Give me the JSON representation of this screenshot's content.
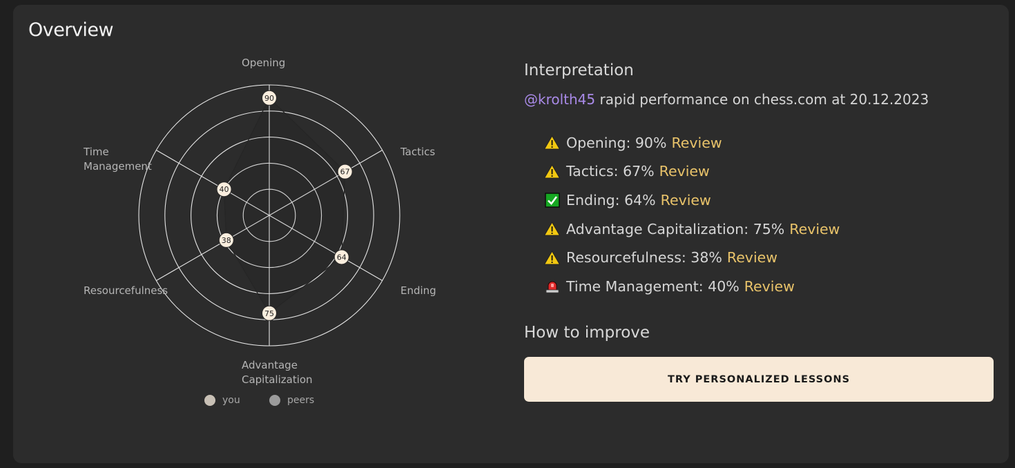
{
  "card": {
    "title": "Overview"
  },
  "chart_data": {
    "type": "radar",
    "axes": [
      "Opening",
      "Tactics",
      "Ending",
      "Advantage Capitalization",
      "Resourcefulness",
      "Time Management"
    ],
    "axis_labels": [
      [
        "Opening"
      ],
      [
        "Tactics"
      ],
      [
        "Ending"
      ],
      [
        "Advantage",
        "Capitalization"
      ],
      [
        "Resourcefulness"
      ],
      [
        "Time",
        "Management"
      ]
    ],
    "range": [
      0,
      100
    ],
    "grid_rings": 5,
    "series": [
      {
        "name": "you",
        "values": [
          90,
          67,
          64,
          75,
          38,
          40
        ],
        "color": "#c8c0b5"
      },
      {
        "name": "peers",
        "values": [],
        "color": "#9b9b9b"
      }
    ],
    "legend_position": "bottom"
  },
  "interpretation": {
    "heading": "Interpretation",
    "username": "@krolth45",
    "subtitle_rest": " rapid performance on chess.com at 20.12.2023",
    "items": [
      {
        "icon": "warning-icon",
        "text": "Opening: 90%",
        "link": "Review"
      },
      {
        "icon": "warning-icon",
        "text": "Tactics: 67%",
        "link": "Review"
      },
      {
        "icon": "check-icon",
        "text": "Ending: 64%",
        "link": "Review"
      },
      {
        "icon": "warning-icon",
        "text": "Advantage Capitalization: 75%",
        "link": "Review"
      },
      {
        "icon": "warning-icon",
        "text": "Resourcefulness: 38%",
        "link": "Review"
      },
      {
        "icon": "siren-icon",
        "text": "Time Management: 40%",
        "link": "Review"
      }
    ]
  },
  "improve": {
    "heading": "How to improve",
    "button_label": "TRY PERSONALIZED LESSONS"
  },
  "colors": {
    "accent_user": "#a98ae8",
    "review_link": "#e9c36a",
    "cta_background": "#f8e9d7",
    "card_background": "#2c2c2c"
  }
}
